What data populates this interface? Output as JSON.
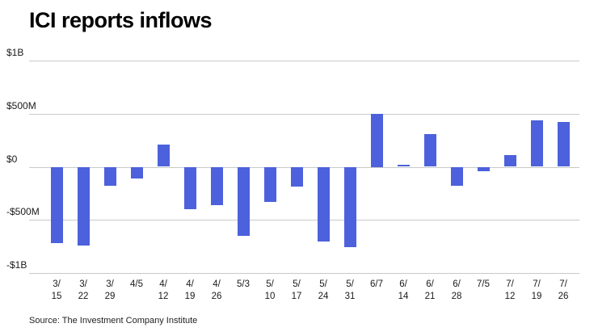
{
  "chart_data": {
    "type": "bar",
    "title": "ICI reports inflows",
    "source": "Source: The Investment Company Institute",
    "bar_color": "#4c61db",
    "gridline_color": "#c9c9c9",
    "categories": [
      "3/15",
      "3/22",
      "3/29",
      "4/5",
      "4/12",
      "4/19",
      "4/26",
      "5/3",
      "5/10",
      "5/17",
      "5/24",
      "5/31",
      "6/7",
      "6/14",
      "6/21",
      "6/28",
      "7/5",
      "7/12",
      "7/19",
      "7/26"
    ],
    "tick_lines": [
      [
        "3/",
        "15"
      ],
      [
        "3/",
        "22"
      ],
      [
        "3/",
        "29"
      ],
      [
        "4/5"
      ],
      [
        "4/",
        "12"
      ],
      [
        "4/",
        "19"
      ],
      [
        "4/",
        "26"
      ],
      [
        "5/3"
      ],
      [
        "5/",
        "10"
      ],
      [
        "5/",
        "17"
      ],
      [
        "5/",
        "24"
      ],
      [
        "5/",
        "31"
      ],
      [
        "6/7"
      ],
      [
        "6/",
        "14"
      ],
      [
        "6/",
        "21"
      ],
      [
        "6/",
        "28"
      ],
      [
        "7/5"
      ],
      [
        "7/",
        "12"
      ],
      [
        "7/",
        "19"
      ],
      [
        "7/",
        "26"
      ]
    ],
    "values_millions": [
      -720,
      -740,
      -180,
      -110,
      210,
      -400,
      -360,
      -650,
      -330,
      -190,
      -700,
      -760,
      500,
      20,
      310,
      -180,
      -40,
      110,
      440,
      420
    ],
    "ylim_millions": [
      -1000,
      1000
    ],
    "yticks": [
      {
        "label": "$1B",
        "value": 1000
      },
      {
        "label": "$500M",
        "value": 500
      },
      {
        "label": "$0",
        "value": 0
      },
      {
        "label": "-$500M",
        "value": -500
      },
      {
        "label": "-$1B",
        "value": -1000
      }
    ],
    "xlabel": "",
    "ylabel": "",
    "legend": "none",
    "grid": "horizontal"
  }
}
